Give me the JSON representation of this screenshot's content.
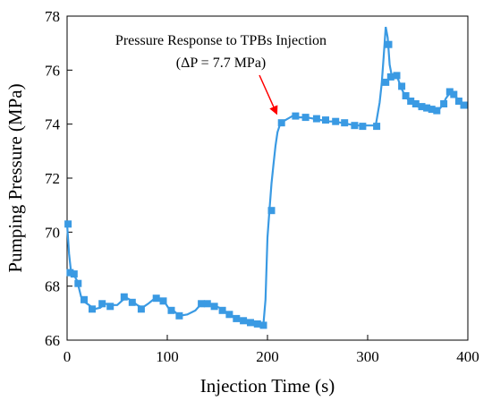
{
  "chart_data": {
    "type": "line",
    "xlabel": "Injection Time (s)",
    "ylabel": "Pumping Pressure (MPa)",
    "xlim": [
      0,
      400
    ],
    "ylim": [
      66,
      78
    ],
    "xticks": [
      0,
      100,
      200,
      300,
      400
    ],
    "yticks": [
      66,
      68,
      70,
      72,
      74,
      76,
      78
    ],
    "grid": false,
    "series_color": "#3a9ae3",
    "arrow_color": "#ff0000",
    "annotation": {
      "line1": "Pressure Response to TPBs Injection",
      "line2": "(ΔP = 7.7 MPa)",
      "arrow_target": [
        209,
        74.4
      ]
    },
    "series": [
      {
        "line": [
          [
            0,
            70.3
          ],
          [
            2,
            69.2
          ],
          [
            4,
            68.5
          ],
          [
            7,
            68.4
          ],
          [
            10,
            68.2
          ],
          [
            14,
            67.6
          ],
          [
            18,
            67.4
          ],
          [
            22,
            67.3
          ],
          [
            27,
            67.15
          ],
          [
            33,
            67.2
          ],
          [
            38,
            67.35
          ],
          [
            44,
            67.3
          ],
          [
            50,
            67.3
          ],
          [
            56,
            67.5
          ],
          [
            60,
            67.55
          ],
          [
            65,
            67.45
          ],
          [
            70,
            67.3
          ],
          [
            75,
            67.2
          ],
          [
            81,
            67.35
          ],
          [
            86,
            67.5
          ],
          [
            91,
            67.55
          ],
          [
            96,
            67.5
          ],
          [
            101,
            67.2
          ],
          [
            106,
            67.1
          ],
          [
            112,
            66.9
          ],
          [
            120,
            66.95
          ],
          [
            128,
            67.1
          ],
          [
            134,
            67.35
          ],
          [
            140,
            67.35
          ],
          [
            146,
            67.3
          ],
          [
            152,
            67.2
          ],
          [
            158,
            67.05
          ],
          [
            164,
            66.9
          ],
          [
            170,
            66.8
          ],
          [
            176,
            66.7
          ],
          [
            182,
            66.65
          ],
          [
            188,
            66.6
          ],
          [
            193,
            66.55
          ],
          [
            196,
            66.6
          ],
          [
            198,
            67.5
          ],
          [
            200,
            69.8
          ],
          [
            202,
            70.8
          ],
          [
            204,
            71.8
          ],
          [
            206,
            72.5
          ],
          [
            208,
            73.2
          ],
          [
            210,
            73.7
          ],
          [
            213,
            74.05
          ],
          [
            218,
            74.15
          ],
          [
            225,
            74.3
          ],
          [
            232,
            74.25
          ],
          [
            239,
            74.25
          ],
          [
            246,
            74.2
          ],
          [
            253,
            74.15
          ],
          [
            260,
            74.1
          ],
          [
            267,
            74.1
          ],
          [
            274,
            74.05
          ],
          [
            281,
            74.0
          ],
          [
            288,
            73.95
          ],
          [
            295,
            73.95
          ],
          [
            302,
            73.95
          ],
          [
            308,
            73.95
          ],
          [
            312,
            74.8
          ],
          [
            314,
            75.5
          ],
          [
            316,
            76.5
          ],
          [
            318,
            77.6
          ],
          [
            320,
            77.2
          ],
          [
            322,
            76.2
          ],
          [
            324,
            75.8
          ],
          [
            327,
            75.75
          ],
          [
            330,
            75.7
          ],
          [
            334,
            75.3
          ],
          [
            338,
            75.0
          ],
          [
            342,
            74.85
          ],
          [
            346,
            74.75
          ],
          [
            350,
            74.65
          ],
          [
            355,
            74.6
          ],
          [
            360,
            74.55
          ],
          [
            365,
            74.5
          ],
          [
            370,
            74.5
          ],
          [
            375,
            74.7
          ],
          [
            378,
            74.95
          ],
          [
            381,
            75.1
          ],
          [
            384,
            75.2
          ],
          [
            387,
            75.1
          ],
          [
            390,
            74.9
          ],
          [
            394,
            74.8
          ],
          [
            398,
            74.65
          ]
        ],
        "markers": [
          [
            1,
            70.3
          ],
          [
            3,
            68.5
          ],
          [
            7,
            68.45
          ],
          [
            11,
            68.1
          ],
          [
            17,
            67.5
          ],
          [
            25,
            67.15
          ],
          [
            35,
            67.35
          ],
          [
            43,
            67.25
          ],
          [
            57,
            67.6
          ],
          [
            65,
            67.4
          ],
          [
            74,
            67.15
          ],
          [
            89,
            67.55
          ],
          [
            96,
            67.45
          ],
          [
            104,
            67.1
          ],
          [
            112,
            66.9
          ],
          [
            134,
            67.35
          ],
          [
            140,
            67.35
          ],
          [
            147,
            67.25
          ],
          [
            155,
            67.1
          ],
          [
            162,
            66.95
          ],
          [
            169,
            66.8
          ],
          [
            176,
            66.72
          ],
          [
            183,
            66.65
          ],
          [
            190,
            66.6
          ],
          [
            196,
            66.55
          ],
          [
            204,
            70.8
          ],
          [
            214,
            74.05
          ],
          [
            228,
            74.3
          ],
          [
            238,
            74.25
          ],
          [
            249,
            74.2
          ],
          [
            258,
            74.15
          ],
          [
            268,
            74.1
          ],
          [
            277,
            74.05
          ],
          [
            287,
            73.95
          ],
          [
            295,
            73.92
          ],
          [
            309,
            73.92
          ],
          [
            318,
            75.55
          ],
          [
            321,
            76.95
          ],
          [
            323,
            75.75
          ],
          [
            329,
            75.8
          ],
          [
            334,
            75.4
          ],
          [
            338,
            75.05
          ],
          [
            343,
            74.85
          ],
          [
            348,
            74.75
          ],
          [
            354,
            74.65
          ],
          [
            359,
            74.6
          ],
          [
            364,
            74.55
          ],
          [
            369,
            74.5
          ],
          [
            376,
            74.75
          ],
          [
            382,
            75.2
          ],
          [
            386,
            75.1
          ],
          [
            391,
            74.85
          ],
          [
            396,
            74.7
          ]
        ]
      }
    ]
  }
}
